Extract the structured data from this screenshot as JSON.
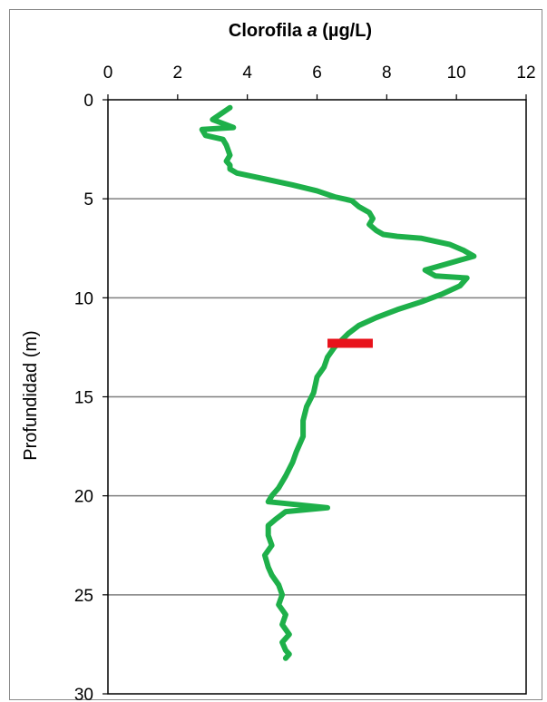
{
  "chart_data": {
    "type": "line",
    "title": "Clorofila a (µg/L)",
    "title_parts": {
      "prefix": "Clorofila ",
      "italic": "a",
      "suffix": " (µg/L)"
    },
    "xlabel": "Clorofila a (µg/L)",
    "ylabel": "Profundidad (m)",
    "xlim": [
      0,
      12
    ],
    "ylim": [
      0,
      30
    ],
    "y_inverted": true,
    "x_axis_position": "top",
    "x_ticks": [
      0,
      2,
      4,
      6,
      8,
      10,
      12
    ],
    "y_ticks": [
      0,
      5,
      10,
      15,
      20,
      25,
      30
    ],
    "grid": "horizontal major gridlines",
    "series": [
      {
        "color": "#1eb04a",
        "x": [
          3.5,
          3.0,
          3.6,
          2.7,
          2.8,
          3.3,
          3.4,
          3.5,
          3.4,
          3.5,
          3.5,
          3.7,
          4.5,
          5.3,
          6.0,
          6.5,
          7.0,
          7.2,
          7.5,
          7.6,
          7.5,
          7.7,
          7.9,
          8.3,
          9.0,
          9.8,
          10.2,
          10.5,
          9.7,
          9.1,
          9.4,
          10.3,
          10.1,
          9.6,
          9.0,
          8.3,
          7.7,
          7.2,
          6.9,
          6.5,
          6.3,
          6.2,
          6.0,
          5.9,
          5.7,
          5.6,
          5.6,
          5.4,
          5.3,
          5.1,
          4.9,
          4.7,
          4.6,
          6.3,
          5.1,
          4.8,
          4.6,
          4.6,
          4.7,
          4.5,
          4.6,
          4.7,
          4.9,
          5.0,
          4.9,
          5.1,
          5.0,
          5.2,
          5.0,
          5.1,
          5.2,
          5.1
        ],
        "y": [
          0.4,
          1.0,
          1.4,
          1.5,
          1.8,
          2.0,
          2.3,
          2.8,
          3.1,
          3.3,
          3.5,
          3.7,
          4.0,
          4.3,
          4.6,
          4.9,
          5.1,
          5.4,
          5.7,
          6.0,
          6.3,
          6.6,
          6.8,
          6.9,
          7.0,
          7.3,
          7.6,
          7.9,
          8.3,
          8.6,
          8.9,
          9.0,
          9.4,
          9.8,
          10.2,
          10.6,
          11.0,
          11.4,
          11.8,
          12.5,
          13.0,
          13.5,
          14.0,
          14.8,
          15.5,
          16.2,
          17.0,
          17.8,
          18.3,
          19.0,
          19.6,
          20.0,
          20.3,
          20.6,
          20.8,
          21.2,
          21.5,
          22.0,
          22.5,
          23.0,
          23.6,
          24.0,
          24.5,
          25.0,
          25.5,
          26.0,
          26.5,
          27.0,
          27.4,
          27.8,
          28.0,
          28.2
        ]
      }
    ],
    "annotations": [
      {
        "type": "horizontal-bar",
        "color": "#e8121b",
        "x_start": 6.3,
        "x_end": 7.6,
        "y": 12.3
      }
    ]
  }
}
